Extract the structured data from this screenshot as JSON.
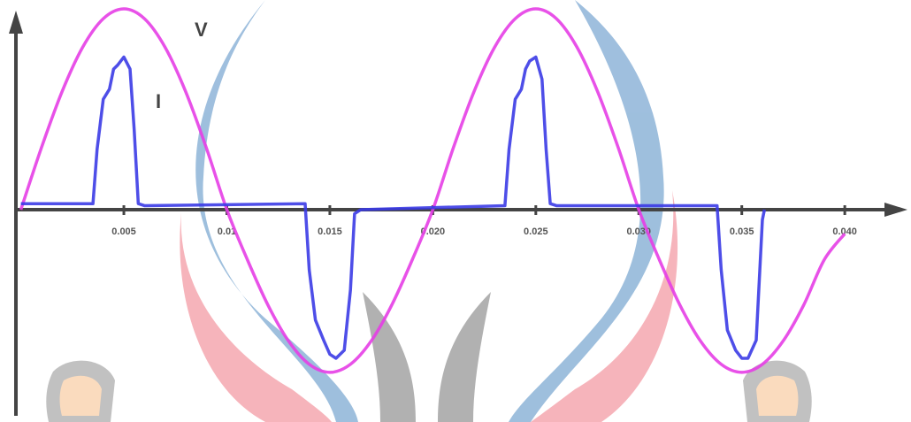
{
  "chart_data": {
    "type": "line",
    "annotations": [
      "V",
      "I"
    ],
    "xlim": [
      0,
      0.043
    ],
    "ylim": [
      -1.03,
      1.0
    ],
    "xticks": [
      0.005,
      0.01,
      0.015,
      {
        "value": 0.02,
        "label": "0.020"
      },
      0.025,
      {
        "value": 0.03,
        "label": "0.030"
      },
      0.035,
      {
        "value": 0.04,
        "label": "0.040"
      }
    ],
    "series": [
      {
        "name": "V",
        "color": "#e63ee6",
        "smooth": true,
        "x": [
          0,
          0.001,
          0.002,
          0.003,
          0.004,
          0.005,
          0.006,
          0.007,
          0.008,
          0.009,
          0.01,
          0.011,
          0.012,
          0.013,
          0.014,
          0.015,
          0.016,
          0.017,
          0.018,
          0.019,
          0.02,
          0.021,
          0.022,
          0.023,
          0.024,
          0.025,
          0.026,
          0.027,
          0.028,
          0.029,
          0.03,
          0.031,
          0.032,
          0.033,
          0.034,
          0.035,
          0.036,
          0.037,
          0.038,
          0.039,
          0.04
        ],
        "values": [
          0,
          0.309,
          0.588,
          0.809,
          0.951,
          1.0,
          0.951,
          0.809,
          0.588,
          0.309,
          0,
          -0.25,
          -0.476,
          -0.655,
          -0.77,
          -0.81,
          -0.77,
          -0.655,
          -0.476,
          -0.25,
          0,
          0.309,
          0.588,
          0.809,
          0.951,
          1.0,
          0.951,
          0.809,
          0.588,
          0.309,
          0,
          -0.25,
          -0.476,
          -0.655,
          -0.77,
          -0.81,
          -0.77,
          -0.655,
          -0.476,
          -0.25,
          -0.12
        ]
      },
      {
        "name": "I",
        "color": "#3b3be6",
        "smooth": false,
        "x": [
          0,
          0.0035,
          0.0037,
          0.004,
          0.0043,
          0.0045,
          0.0047,
          0.005,
          0.0053,
          0.0055,
          0.0057,
          0.006,
          0.0138,
          0.014,
          0.0143,
          0.0147,
          0.015,
          0.0153,
          0.0157,
          0.016,
          0.0162,
          0.0165,
          0.0235,
          0.0237,
          0.024,
          0.0243,
          0.0245,
          0.0247,
          0.025,
          0.0253,
          0.0255,
          0.0257,
          0.026,
          0.0338,
          0.034,
          0.0343,
          0.0347,
          0.035,
          0.0353,
          0.0357,
          0.036,
          0.0361
        ],
        "values": [
          0.03,
          0.03,
          0.3,
          0.55,
          0.6,
          0.7,
          0.72,
          0.76,
          0.7,
          0.4,
          0.03,
          0.02,
          0.03,
          -0.3,
          -0.55,
          -0.65,
          -0.72,
          -0.74,
          -0.7,
          -0.4,
          -0.02,
          0.0,
          0.02,
          0.3,
          0.55,
          0.6,
          0.7,
          0.74,
          0.76,
          0.65,
          0.3,
          0.03,
          0.02,
          0.02,
          -0.3,
          -0.6,
          -0.7,
          -0.74,
          -0.74,
          -0.65,
          -0.05,
          0.0
        ]
      }
    ]
  }
}
